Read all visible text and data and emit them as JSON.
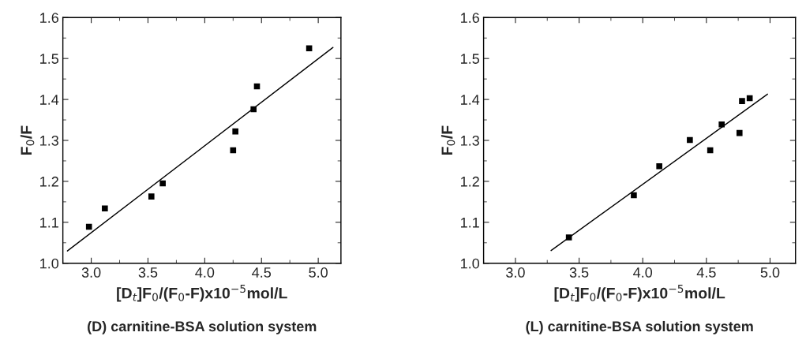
{
  "chart_data": [
    {
      "type": "scatter",
      "xlabel": "[D$_{t}$]F$_{0}$/(F$_{0}$-F)x10$^{−5}$mol/L",
      "ylabel": "F$_{0}$/F",
      "xlim": [
        2.75,
        5.2
      ],
      "ylim": [
        1.0,
        1.6
      ],
      "xticks": [
        {
          "value": 3,
          "label": "3.0"
        },
        {
          "value": 3.5,
          "label": "3.5"
        },
        {
          "value": 4,
          "label": "4.0"
        },
        {
          "value": 4.5,
          "label": "4.5"
        },
        {
          "value": 5,
          "label": "5.0"
        }
      ],
      "yticks": [
        {
          "value": 1,
          "label": "1.0"
        },
        1.1,
        1.2,
        1.3,
        1.4,
        1.5,
        1.6
      ],
      "annotations": [
        "(D) carnitine-BSA solution system"
      ],
      "series": [
        {
          "color": "#000000",
          "marker": "square",
          "x": [
            2.98,
            3.12,
            3.53,
            3.63,
            4.25,
            4.27,
            4.43,
            4.46,
            4.92
          ],
          "values": [
            1.089,
            1.134,
            1.163,
            1.195,
            1.276,
            1.322,
            1.376,
            1.432,
            1.525
          ]
        },
        {
          "type": "line",
          "color": "#000000",
          "line_style": "solid",
          "x": [
            2.79,
            5.13
          ],
          "values": [
            1.03,
            1.527
          ]
        }
      ]
    },
    {
      "type": "scatter",
      "xlabel": "[D$_{t}$]F$_{0}$/(F$_{0}$-F)x10$^{−5}$mol/L",
      "ylabel": "F$_{0}$/F",
      "xlim": [
        2.75,
        5.2
      ],
      "ylim": [
        1.0,
        1.6
      ],
      "xticks": [
        {
          "value": 3,
          "label": "3.0"
        },
        {
          "value": 3.5,
          "label": "3.5"
        },
        {
          "value": 4,
          "label": "4.0"
        },
        {
          "value": 4.5,
          "label": "4.5"
        },
        {
          "value": 5,
          "label": "5.0"
        }
      ],
      "yticks": [
        {
          "value": 1,
          "label": "1.0"
        },
        1.1,
        1.2,
        1.3,
        1.4,
        1.5,
        1.6
      ],
      "annotations": [
        "(L) carnitine-BSA solution system"
      ],
      "series": [
        {
          "color": "#000000",
          "marker": "square",
          "x": [
            3.42,
            3.93,
            4.13,
            4.37,
            4.53,
            4.62,
            4.76,
            4.78,
            4.84
          ],
          "values": [
            1.063,
            1.166,
            1.237,
            1.301,
            1.276,
            1.339,
            1.318,
            1.396,
            1.403
          ]
        },
        {
          "type": "line",
          "color": "#000000",
          "line_style": "solid",
          "x": [
            3.28,
            4.98
          ],
          "values": [
            1.031,
            1.413
          ]
        }
      ]
    }
  ]
}
